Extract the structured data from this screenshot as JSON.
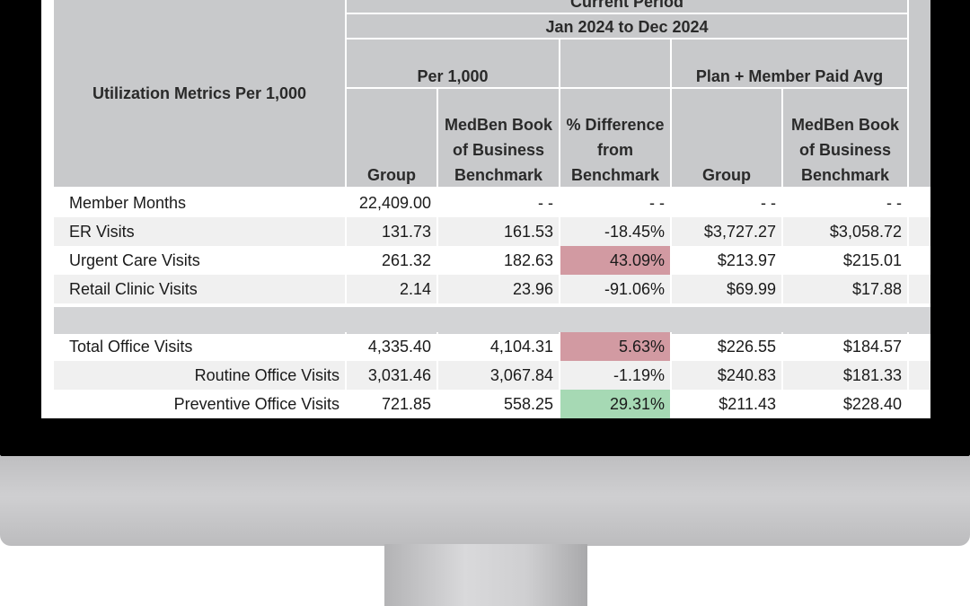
{
  "table": {
    "row_header_title": "Utilization Metrics Per 1,000",
    "period_title": "Current Period",
    "period_range": "Jan 2024 to Dec 2024",
    "group_per1000": "Per 1,000",
    "group_plan_paid": "Plan + Member Paid Avg",
    "col_group": "Group",
    "col_benchmark_line1": "MedBen Book",
    "col_benchmark_line2": "of Business",
    "col_benchmark_line3": "Benchmark",
    "col_diff_line1": "% Difference",
    "col_diff_line2": "from",
    "col_diff_line3": "Benchmark",
    "col_paid_group": "Group",
    "col_paid_bench_line1": "MedBen Book",
    "col_paid_bench_line2": "of Business",
    "col_paid_bench_line3": "Benchmark",
    "rows": [
      {
        "label": "Member Months",
        "group": "22,409.00",
        "bench": "- -",
        "diff": "- -",
        "paid_group": "- -",
        "paid_bench": "- -",
        "status": "none"
      },
      {
        "label": "ER Visits",
        "group": "131.73",
        "bench": "161.53",
        "diff": "-18.45%",
        "paid_group": "$3,727.27",
        "paid_bench": "$3,058.72",
        "status": "good"
      },
      {
        "label": "Urgent Care Visits",
        "group": "261.32",
        "bench": "182.63",
        "diff": "43.09%",
        "paid_group": "$213.97",
        "paid_bench": "$215.01",
        "status": "bad"
      },
      {
        "label": "Retail Clinic Visits",
        "group": "2.14",
        "bench": "23.96",
        "diff": "-91.06%",
        "paid_group": "$69.99",
        "paid_bench": "$17.88",
        "status": "good"
      },
      {
        "label": "Total Office Visits",
        "group": "4,335.40",
        "bench": "4,104.31",
        "diff": "5.63%",
        "paid_group": "$226.55",
        "paid_bench": "$184.57",
        "status": "bad"
      },
      {
        "label": "Routine Office Visits",
        "group": "3,031.46",
        "bench": "3,067.84",
        "diff": "-1.19%",
        "paid_group": "$240.83",
        "paid_bench": "$181.33",
        "status": "good"
      },
      {
        "label": "Preventive Office Visits",
        "group": "721.85",
        "bench": "558.25",
        "diff": "29.31%",
        "paid_group": "$211.43",
        "paid_bench": "$228.40",
        "status": "good"
      }
    ]
  },
  "colors": {
    "header_bg": "#c8c9cb",
    "favorable": "#a6d9b4",
    "unfavorable": "#d29aa2"
  }
}
